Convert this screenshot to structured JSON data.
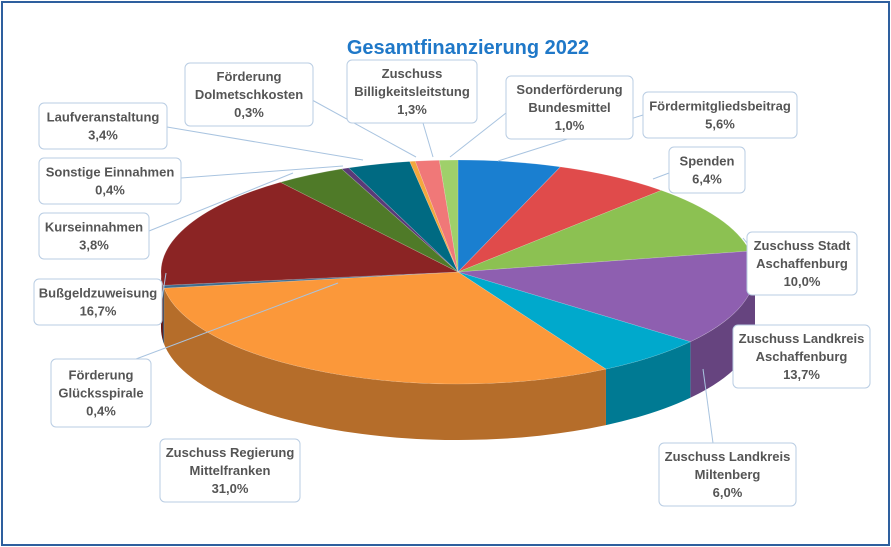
{
  "chart_data": {
    "type": "pie",
    "title": "Gesamtfinanzierung 2022",
    "slices": [
      {
        "label": "Fördermitgliedsbeitrag",
        "value": 5.6,
        "text": "5,6%",
        "color": "#1a7fd0"
      },
      {
        "label": "Spenden",
        "value": 6.4,
        "text": "6,4%",
        "color": "#e04b4b"
      },
      {
        "label": "Zuschuss Stadt Aschaffenburg",
        "value": 10.0,
        "text": "10,0%",
        "color": "#8cc152"
      },
      {
        "label": "Zuschuss Landkreis Aschaffenburg",
        "value": 13.7,
        "text": "13,7%",
        "color": "#8e5fb0"
      },
      {
        "label": "Zuschuss Landkreis Miltenberg",
        "value": 6.0,
        "text": "6,0%",
        "color": "#00a9cc"
      },
      {
        "label": "Zuschuss Regierung Mittelfranken",
        "value": 31.0,
        "text": "31,0%",
        "color": "#fb983a"
      },
      {
        "label": "Förderung Glücksspirale",
        "value": 0.4,
        "text": "0,4%",
        "color": "#3f6d8f"
      },
      {
        "label": "Bußgeldzuweisung",
        "value": 16.7,
        "text": "16,7%",
        "color": "#8b2424"
      },
      {
        "label": "Kurseinnahmen",
        "value": 3.8,
        "text": "3,8%",
        "color": "#4f7a28"
      },
      {
        "label": "Sonstige Einnahmen",
        "value": 0.4,
        "text": "0,4%",
        "color": "#5a3a78"
      },
      {
        "label": "Laufveranstaltung",
        "value": 3.4,
        "text": "3,4%",
        "color": "#006a82"
      },
      {
        "label": "Förderung Dolmetschkosten",
        "value": 0.3,
        "text": "0,3%",
        "color": "#f3a73f"
      },
      {
        "label": "Zuschuss Billigkeitsleitstung",
        "value": 1.3,
        "text": "1,3%",
        "color": "#f07878"
      },
      {
        "label": "Sonderförderung Bundesmittel",
        "value": 1.0,
        "text": "1,0%",
        "color": "#9fd06a"
      }
    ],
    "label_lines": [
      [
        "Fördermitgliedsbeitrag"
      ],
      [
        "Spenden"
      ],
      [
        "Zuschuss Stadt",
        "Aschaffenburg"
      ],
      [
        "Zuschuss Landkreis",
        "Aschaffenburg"
      ],
      [
        "Zuschuss Landkreis",
        "Miltenberg"
      ],
      [
        "Zuschuss Regierung",
        "Mittelfranken"
      ],
      [
        "Förderung",
        "Glücksspirale"
      ],
      [
        "Bußgeldzuweisung"
      ],
      [
        "Kurseinnahmen"
      ],
      [
        "Sonstige Einnahmen"
      ],
      [
        "Laufveranstaltung"
      ],
      [
        "Förderung",
        "Dolmetschkosten"
      ],
      [
        "Zuschuss",
        "Billigkeitsleitstung"
      ],
      [
        "Sonderförderung",
        "Bundesmittel"
      ]
    ],
    "legend": "none",
    "grid": false
  }
}
